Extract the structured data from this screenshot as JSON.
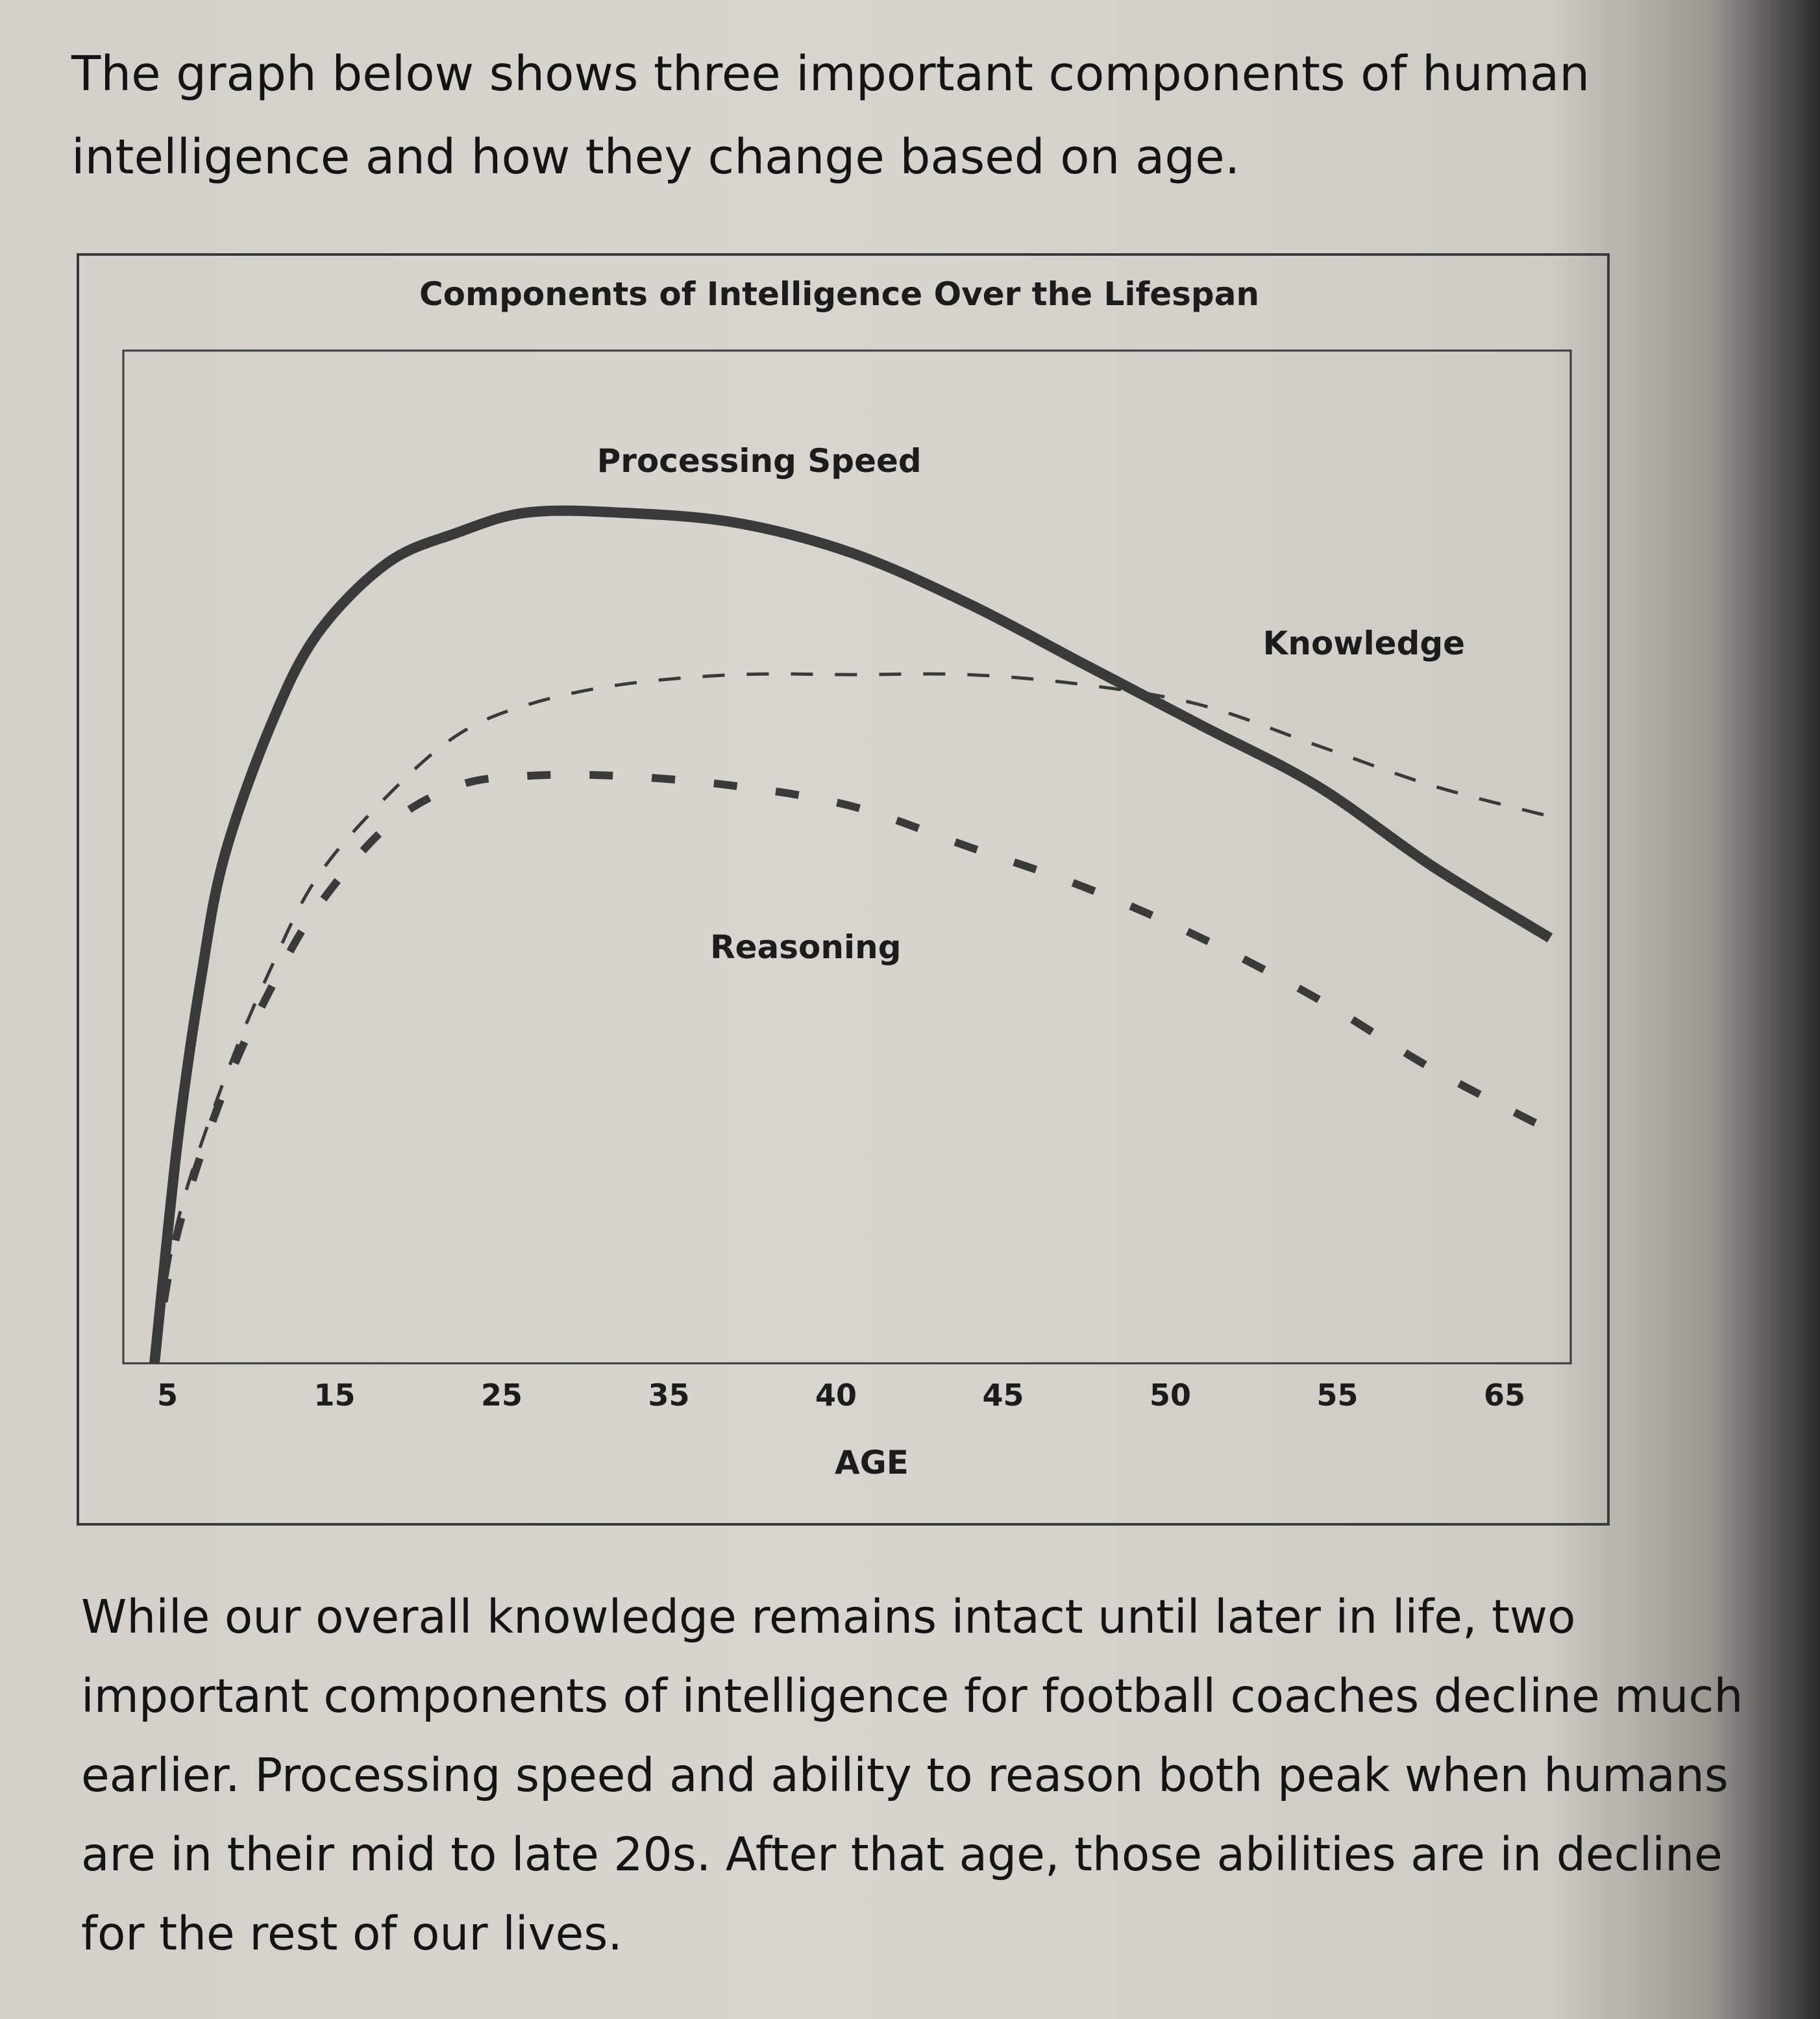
{
  "intro_text": "The graph below shows three important components of human intelligence and how they change based on age.",
  "outro_text": "While our overall knowledge remains intact until later in life, two important components of intelligence for football coaches decline much earlier. Processing speed and ability to reason both peak when humans are in their mid to late 20s. After that age, those abilities are in decline for the rest of our lives.",
  "chart_data": {
    "type": "line",
    "title": "Components of Intelligence Over the Lifespan",
    "xlabel": "AGE",
    "ylabel": "",
    "x_ticks": [
      "5",
      "15",
      "25",
      "35",
      "40",
      "45",
      "50",
      "55",
      "65"
    ],
    "ylim": [
      0,
      100
    ],
    "grid": false,
    "legend": "inline labels",
    "series": [
      {
        "name": "Processing Speed",
        "style": "solid",
        "color": "#3a3a3a",
        "x": [
          5,
          6,
          7,
          8,
          10,
          12,
          15,
          18,
          21,
          25,
          30,
          35,
          40,
          45,
          50,
          55,
          60,
          65
        ],
        "y": [
          0,
          22,
          38,
          50,
          63,
          72,
          79,
          82,
          84,
          84,
          83,
          80,
          75,
          69,
          63,
          57,
          49,
          42
        ]
      },
      {
        "name": "Knowledge",
        "style": "dashed-thin",
        "color": "#3a3a3a",
        "x": [
          5,
          6,
          8,
          10,
          12,
          15,
          18,
          21,
          25,
          30,
          35,
          40,
          45,
          50,
          55,
          60,
          65
        ],
        "y": [
          0,
          14,
          28,
          39,
          48,
          56,
          62,
          65,
          67,
          68,
          68,
          68,
          67,
          65,
          61,
          57,
          54
        ]
      },
      {
        "name": "Reasoning",
        "style": "dashed-thick",
        "color": "#3a3a3a",
        "x": [
          5,
          6,
          8,
          10,
          12,
          15,
          18,
          21,
          25,
          30,
          35,
          40,
          45,
          50,
          55,
          60,
          65
        ],
        "y": [
          0,
          13,
          27,
          37,
          45,
          53,
          57,
          58,
          58,
          57,
          55,
          51,
          47,
          42,
          36,
          29,
          23
        ]
      }
    ]
  }
}
